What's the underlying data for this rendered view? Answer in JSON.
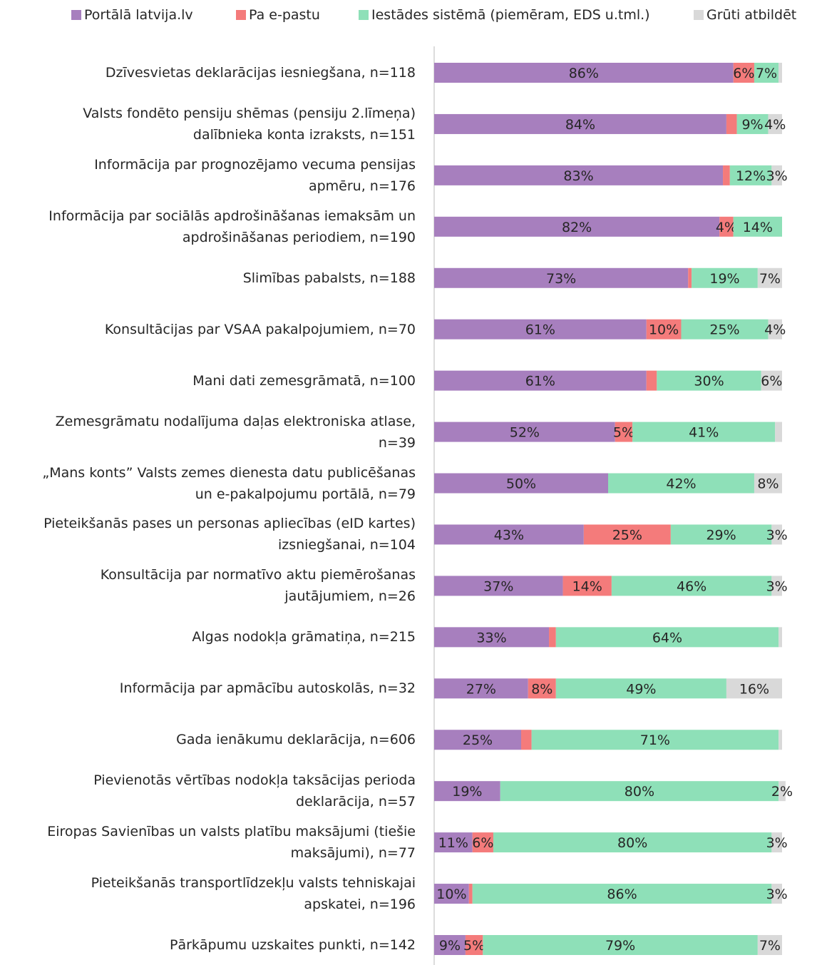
{
  "chart_data": {
    "type": "stacked_bar_horizontal",
    "categories": [
      "Dzīvesvietas deklarācijas iesniegšana, n=118",
      "Valsts fondēto pensiju shēmas (pensiju 2.līmeņa)\ndalībnieka konta izraksts, n=151",
      "Informācija par prognozējamo vecuma pensijas\napmēru, n=176",
      "Informācija par sociālās apdrošināšanas iemaksām un\napdrošināšanas periodiem, n=190",
      "Slimības pabalsts, n=188",
      "Konsultācijas par VSAA pakalpojumiem, n=70",
      "Mani dati zemesgrāmatā, n=100",
      "Zemesgrāmatu nodalījuma daļas elektroniska atlase,\nn=39",
      "„Mans konts” Valsts zemes dienesta datu publicēšanas\nun e-pakalpojumu portālā, n=79",
      "Pieteikšanās pases un personas apliecības (eID kartes)\nizsniegšanai, n=104",
      "Konsultācija par normatīvo aktu piemērošanas\njautājumiem, n=26",
      "Algas nodokļa grāmatiņa, n=215",
      "Informācija par apmācību autoskolās, n=32",
      "Gada ienākumu deklarācija, n=606",
      "Pievienotās vērtības nodokļa taksācijas perioda\ndeklarācija, n=57",
      "Eiropas Savienības un valsts platību maksājumi (tiešie\nmaksājumi), n=77",
      "Pieteikšanās transportlīdzekļu valsts tehniskajai\napskatei, n=196",
      "Pārkāpumu uzskaites punkti, n=142"
    ],
    "xlim": [
      0,
      100
    ],
    "series": [
      {
        "name": "Portālā latvija.lv",
        "color": "#a77fbe",
        "values": [
          86,
          84,
          83,
          82,
          73,
          61,
          61,
          52,
          50,
          43,
          37,
          33,
          27,
          25,
          19,
          11,
          10,
          9
        ],
        "value_labels": [
          "86%",
          "84%",
          "83%",
          "82%",
          "73%",
          "61%",
          "61%",
          "52%",
          "50%",
          "43%",
          "37%",
          "33%",
          "27%",
          "25%",
          "19%",
          "11%",
          "10%",
          "9%"
        ]
      },
      {
        "name": "Pa e-pastu",
        "color": "#f47b7b",
        "values": [
          6,
          3,
          2,
          4,
          1,
          10,
          3,
          5,
          0,
          25,
          14,
          2,
          8,
          3,
          0,
          6,
          1,
          5
        ],
        "value_labels": [
          "6%",
          null,
          null,
          "4%",
          null,
          "10%",
          null,
          "5%",
          null,
          "25%",
          "14%",
          null,
          "8%",
          null,
          null,
          "6%",
          null,
          "5%"
        ]
      },
      {
        "name": "Iestādes sistēmā (piemēram, EDS u.tml.)",
        "color": "#8ee0b8",
        "values": [
          7,
          9,
          12,
          14,
          19,
          25,
          30,
          41,
          42,
          29,
          46,
          64,
          49,
          71,
          80,
          80,
          86,
          79
        ],
        "value_labels": [
          "7%",
          "9%",
          "12%",
          "14%",
          "19%",
          "25%",
          "30%",
          "41%",
          "42%",
          "29%",
          "46%",
          "64%",
          "49%",
          "71%",
          "80%",
          "80%",
          "86%",
          "79%"
        ]
      },
      {
        "name": "Grūti atbildēt",
        "color": "#d9d9d9",
        "values": [
          1,
          4,
          3,
          0,
          7,
          4,
          6,
          2,
          8,
          3,
          3,
          1,
          16,
          1,
          2,
          3,
          3,
          7
        ],
        "value_labels": [
          null,
          "4%",
          "3%",
          null,
          "7%",
          "4%",
          "6%",
          null,
          "8%",
          "3%",
          "3%",
          null,
          "16%",
          null,
          "2%",
          "3%",
          "3%",
          "7%"
        ]
      }
    ]
  }
}
